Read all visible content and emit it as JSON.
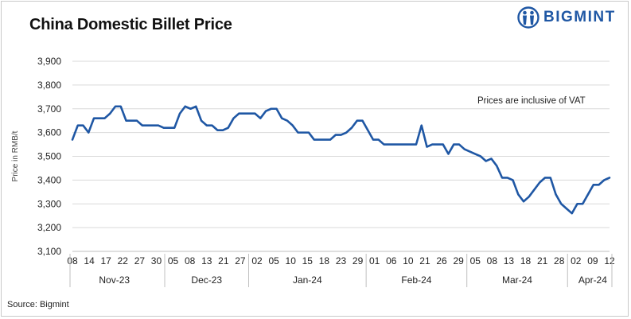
{
  "title": "China Domestic Billet Price",
  "brand": {
    "name": "BIGMINT",
    "color": "#1f57a4"
  },
  "source": "Source: Bigmint",
  "chart_data": {
    "type": "line",
    "title": "China Domestic Billet Price",
    "ylabel": "Price in RMB/t",
    "xlabel": "",
    "ylim": [
      3100,
      3900
    ],
    "yticks": [
      3100,
      3200,
      3300,
      3400,
      3500,
      3600,
      3700,
      3800,
      3900
    ],
    "ytick_labels": [
      "3,100",
      "3,200",
      "3,300",
      "3,400",
      "3,500",
      "3,600",
      "3,700",
      "3,800",
      "3,900"
    ],
    "grid": true,
    "annotation": "Prices are inclusive of VAT",
    "line_color": "#1f57a4",
    "x_tick_labels": [
      "08",
      "14",
      "17",
      "22",
      "27",
      "30",
      "05",
      "08",
      "13",
      "21",
      "27",
      "02",
      "05",
      "10",
      "15",
      "18",
      "23",
      "29",
      "01",
      "06",
      "10",
      "21",
      "26",
      "29",
      "05",
      "08",
      "13",
      "18",
      "21",
      "28",
      "02",
      "09",
      "12"
    ],
    "months": [
      "Nov-23",
      "Dec-23",
      "Jan-24",
      "Feb-24",
      "Mar-24",
      "Apr-24"
    ],
    "series": [
      {
        "values": [
          3570,
          3630,
          3630,
          3600,
          3660,
          3660,
          3660,
          3680,
          3710,
          3710,
          3650,
          3650,
          3650,
          3630,
          3630,
          3630,
          3630,
          3620,
          3620,
          3620,
          3680,
          3710,
          3700,
          3710,
          3650,
          3630,
          3630,
          3610,
          3610,
          3620,
          3660,
          3680,
          3680,
          3680,
          3680,
          3660,
          3690,
          3700,
          3700,
          3660,
          3650,
          3630,
          3600,
          3600,
          3600,
          3570,
          3570,
          3570,
          3570,
          3590,
          3590,
          3600,
          3620,
          3650,
          3650,
          3610,
          3570,
          3570,
          3550,
          3550,
          3550,
          3550,
          3550,
          3550,
          3550,
          3630,
          3540,
          3550,
          3550,
          3550,
          3510,
          3550,
          3550,
          3530,
          3520,
          3510,
          3500,
          3480,
          3490,
          3460,
          3410,
          3410,
          3400,
          3340,
          3310,
          3330,
          3360,
          3390,
          3410,
          3410,
          3340,
          3300,
          3280,
          3260,
          3300,
          3300,
          3340,
          3380,
          3380,
          3400,
          3410
        ]
      }
    ]
  }
}
